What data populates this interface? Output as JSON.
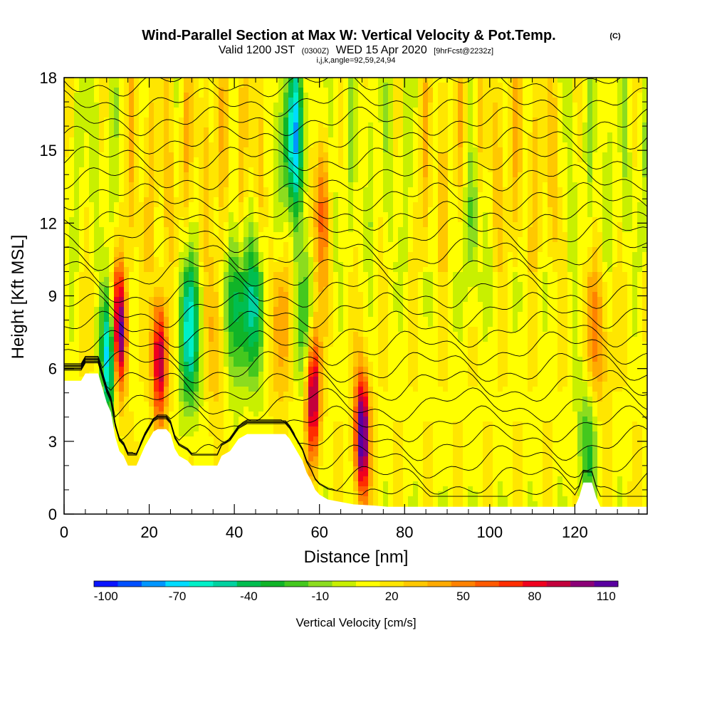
{
  "title": {
    "main": "Wind-Parallel Section at Max W: Vertical Velocity & Pot.Temp.",
    "copyright": "(C)",
    "valid_prefix": "Valid 1200 JST",
    "valid_utc": "(0300Z)",
    "valid_date": "WED 15 Apr 2020",
    "forecast": "[9hrFcst@2232z]",
    "params": "i,j,k,angle=92,59,24,94"
  },
  "chart_data": {
    "type": "heatmap",
    "xlabel": "Distance [nm]",
    "ylabel": "Height [Kft MSL]",
    "xlim": [
      0,
      137
    ],
    "ylim": [
      0,
      18
    ],
    "x_ticks": [
      0,
      20,
      40,
      60,
      80,
      100,
      120
    ],
    "y_ticks": [
      0,
      3,
      6,
      9,
      12,
      15,
      18
    ],
    "x_tick_labels": [
      "0",
      "20",
      "40",
      "60",
      "80",
      "100",
      "120"
    ],
    "y_tick_labels": [
      "0",
      "3",
      "6",
      "9",
      "12",
      "15",
      "18"
    ],
    "field": "Vertical Velocity",
    "contour_field": "Potential temperature",
    "colorbar": {
      "title": "Vertical Velocity [cm/s]",
      "min": -100,
      "max": 110,
      "step": 10,
      "labels": [
        "-100",
        "-70",
        "-40",
        "-10",
        "20",
        "50",
        "80",
        "110"
      ],
      "colors": [
        "#0a14ff",
        "#0050ff",
        "#0096ff",
        "#00dcff",
        "#00f0c8",
        "#00d2a0",
        "#00be50",
        "#10b428",
        "#44c81e",
        "#8cdc1e",
        "#c8f000",
        "#ffff00",
        "#ffe600",
        "#ffc800",
        "#ffaa00",
        "#ff8200",
        "#ff5a00",
        "#ff2d00",
        "#f0001e",
        "#c3003c",
        "#8c0078",
        "#5a00a0"
      ]
    },
    "terrain_heights_kft": [
      [
        0,
        5.5
      ],
      [
        4,
        5.5
      ],
      [
        5,
        5.8
      ],
      [
        8,
        5.8
      ],
      [
        9,
        5.2
      ],
      [
        10,
        4.6
      ],
      [
        11,
        4.2
      ],
      [
        12,
        3.2
      ],
      [
        13,
        2.6
      ],
      [
        14,
        2.4
      ],
      [
        15,
        2.0
      ],
      [
        17,
        2.0
      ],
      [
        18,
        2.4
      ],
      [
        19,
        2.8
      ],
      [
        20,
        3.1
      ],
      [
        21,
        3.4
      ],
      [
        22,
        3.5
      ],
      [
        24,
        3.5
      ],
      [
        25,
        3.3
      ],
      [
        26,
        2.7
      ],
      [
        27,
        2.4
      ],
      [
        29,
        2.2
      ],
      [
        30,
        2.0
      ],
      [
        36,
        2.0
      ],
      [
        37,
        2.4
      ],
      [
        39,
        2.6
      ],
      [
        41,
        3.1
      ],
      [
        43,
        3.3
      ],
      [
        52,
        3.3
      ],
      [
        53,
        3.1
      ],
      [
        54,
        2.8
      ],
      [
        55,
        2.5
      ],
      [
        56,
        2.2
      ],
      [
        57,
        1.7
      ],
      [
        58,
        1.4
      ],
      [
        59,
        1.0
      ],
      [
        60,
        0.8
      ],
      [
        62,
        0.6
      ],
      [
        65,
        0.5
      ],
      [
        68,
        0.4
      ],
      [
        73,
        0.35
      ],
      [
        76,
        0.3
      ],
      [
        120,
        0.3
      ],
      [
        121,
        0.7
      ],
      [
        122,
        1.3
      ],
      [
        124,
        1.3
      ],
      [
        125,
        0.7
      ],
      [
        126,
        0.3
      ],
      [
        137,
        0.3
      ]
    ],
    "updraft_cores": [
      {
        "x_nm": 13,
        "z_kft": 7.6,
        "w_cms": 100
      },
      {
        "x_nm": 22.5,
        "z_kft": 6.4,
        "w_cms": 90
      },
      {
        "x_nm": 58.5,
        "z_kft": 5.0,
        "w_cms": 95
      },
      {
        "x_nm": 70,
        "z_kft": 3.3,
        "w_cms": 110
      },
      {
        "x_nm": 36,
        "z_kft": 7.5,
        "w_cms": 30
      },
      {
        "x_nm": 51,
        "z_kft": 8.0,
        "w_cms": 40
      },
      {
        "x_nm": 60,
        "z_kft": 12.5,
        "w_cms": 45
      },
      {
        "x_nm": 125,
        "z_kft": 7.0,
        "w_cms": 40
      }
    ],
    "downdraft_cores": [
      {
        "x_nm": 10.5,
        "z_kft": 6.5,
        "w_cms": -90
      },
      {
        "x_nm": 29.5,
        "z_kft": 7.5,
        "w_cms": -70
      },
      {
        "x_nm": 40,
        "z_kft": 8.5,
        "w_cms": -60
      },
      {
        "x_nm": 45,
        "z_kft": 8.5,
        "w_cms": -55
      },
      {
        "x_nm": 54,
        "z_kft": 15.5,
        "w_cms": -70
      },
      {
        "x_nm": 56,
        "z_kft": 8.0,
        "w_cms": -40
      },
      {
        "x_nm": 96,
        "z_kft": 12.0,
        "w_cms": -35
      },
      {
        "x_nm": 123,
        "z_kft": 3.0,
        "w_cms": -40
      }
    ]
  }
}
